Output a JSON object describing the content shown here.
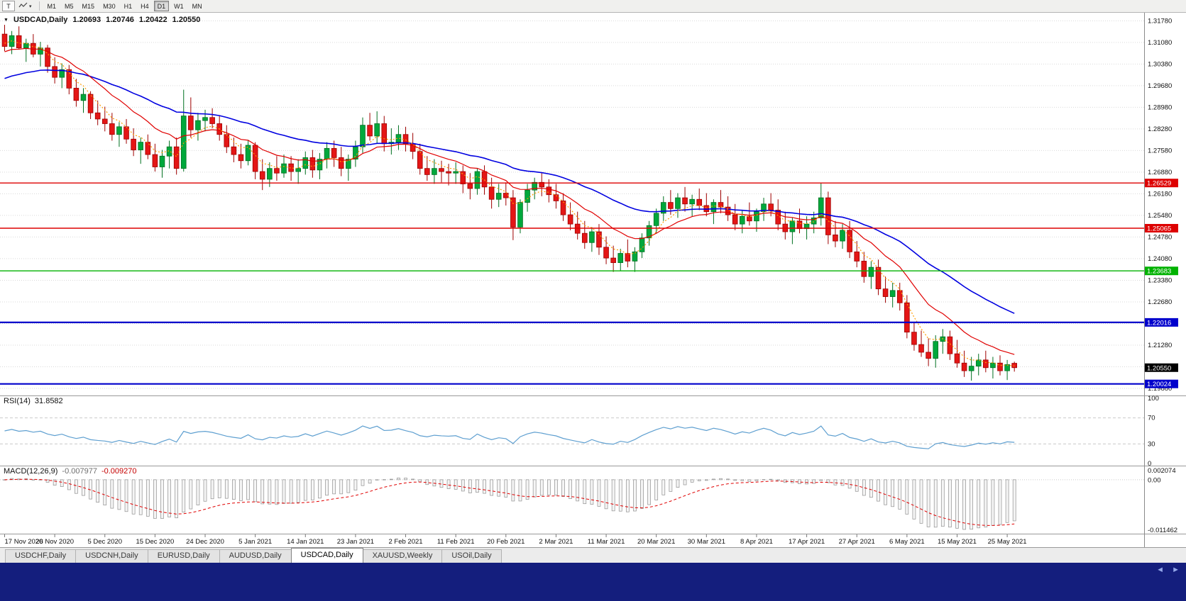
{
  "icons": {
    "collapse": "▼",
    "dropdown": "▾",
    "scroll_left": "◄",
    "scroll_right": "►"
  },
  "toolbar": {
    "tool_button": "T",
    "timeframes": [
      {
        "label": "M1"
      },
      {
        "label": "M5"
      },
      {
        "label": "M15"
      },
      {
        "label": "M30"
      },
      {
        "label": "H1"
      },
      {
        "label": "H4"
      },
      {
        "label": "D1",
        "active": true
      },
      {
        "label": "W1"
      },
      {
        "label": "MN"
      }
    ]
  },
  "chart": {
    "header": {
      "symbol": "USDCAD,Daily",
      "open": "1.20693",
      "high": "1.20746",
      "low": "1.20422",
      "close": "1.20550"
    },
    "price_axis": {
      "labels": [
        "1.31780",
        "1.31080",
        "1.30380",
        "1.29680",
        "1.28980",
        "1.28280",
        "1.27580",
        "1.26880",
        "1.26180",
        "1.25480",
        "1.24780",
        "1.24080",
        "1.23380",
        "1.22680",
        "1.21980",
        "1.21280",
        "1.20580",
        "1.19880"
      ],
      "top": 1.3178,
      "step": 0.007,
      "view_max": 1.3188,
      "view_min": 1.1965
    },
    "hlines": [
      {
        "price": 1.26529,
        "label": "1.26529",
        "color": "#dd0000",
        "width": 1.4
      },
      {
        "price": 1.25065,
        "label": "1.25065",
        "color": "#dd0000",
        "width": 1.4
      },
      {
        "price": 1.23683,
        "label": "1.23683",
        "color": "#00b200",
        "width": 1.4
      },
      {
        "price": 1.22016,
        "label": "1.22016",
        "color": "#0000cc",
        "width": 2.2
      },
      {
        "price": 1.20024,
        "label": "1.20024",
        "color": "#0000cc",
        "width": 2.2
      }
    ],
    "current_price": {
      "price": 1.2055,
      "label": "1.20550",
      "bg": "#000000"
    },
    "moving_averages": [
      {
        "name": "ma-blue-line",
        "color": "#0000e0",
        "period": 34,
        "seed": 1.2985,
        "width": 1.6,
        "dash": ""
      },
      {
        "name": "ma-red-line",
        "color": "#e00000",
        "period": 13,
        "seed": 1.3075,
        "width": 1.2,
        "dash": ""
      },
      {
        "name": "ma-orange-line",
        "color": "#ff9c00",
        "period": 5,
        "seed": 1.311,
        "width": 1.2,
        "dash": "2,2.5"
      }
    ]
  },
  "chart_data": {
    "type": "candlestick",
    "symbol": "USDCAD",
    "timeframe": "Daily",
    "bars_per_label": 7,
    "colors": {
      "up_fill": "#00a83c",
      "up_border": "#007020",
      "down_fill": "#e41616",
      "down_border": "#9e0000"
    },
    "date_labels": [
      "17 Nov 2020",
      "26 Nov 2020",
      "5 Dec 2020",
      "15 Dec 2020",
      "24 Dec 2020",
      "5 Jan 2021",
      "14 Jan 2021",
      "23 Jan 2021",
      "2 Feb 2021",
      "11 Feb 2021",
      "20 Feb 2021",
      "2 Mar 2021",
      "11 Mar 2021",
      "20 Mar 2021",
      "30 Mar 2021",
      "8 Apr 2021",
      "17 Apr 2021",
      "27 Apr 2021",
      "6 May 2021",
      "15 May 2021",
      "25 May 2021"
    ],
    "ohlc": [
      [
        1.3135,
        1.3165,
        1.308,
        1.3095
      ],
      [
        1.3095,
        1.3145,
        1.307,
        1.313
      ],
      [
        1.313,
        1.316,
        1.3085,
        1.309
      ],
      [
        1.309,
        1.312,
        1.3045,
        1.3105
      ],
      [
        1.3105,
        1.3135,
        1.306,
        1.307
      ],
      [
        1.307,
        1.311,
        1.303,
        1.309
      ],
      [
        1.309,
        1.31,
        1.301,
        1.303
      ],
      [
        1.303,
        1.306,
        1.2975,
        1.2995
      ],
      [
        1.2995,
        1.304,
        1.296,
        1.302
      ],
      [
        1.302,
        1.3035,
        1.294,
        1.296
      ],
      [
        1.296,
        1.299,
        1.29,
        1.292
      ],
      [
        1.292,
        1.296,
        1.288,
        1.294
      ],
      [
        1.294,
        1.295,
        1.286,
        1.288
      ],
      [
        1.288,
        1.292,
        1.284,
        1.286
      ],
      [
        1.286,
        1.29,
        1.282,
        1.2845
      ],
      [
        1.2845,
        1.288,
        1.279,
        1.281
      ],
      [
        1.281,
        1.285,
        1.277,
        1.2835
      ],
      [
        1.2835,
        1.286,
        1.278,
        1.2795
      ],
      [
        1.2795,
        1.283,
        1.274,
        1.276
      ],
      [
        1.276,
        1.28,
        1.2715,
        1.2785
      ],
      [
        1.2785,
        1.281,
        1.273,
        1.2745
      ],
      [
        1.2745,
        1.278,
        1.269,
        1.2705
      ],
      [
        1.2705,
        1.276,
        1.267,
        1.274
      ],
      [
        1.274,
        1.279,
        1.27,
        1.277
      ],
      [
        1.277,
        1.28,
        1.268,
        1.27
      ],
      [
        1.27,
        1.2955,
        1.269,
        1.287
      ],
      [
        1.287,
        1.293,
        1.28,
        1.2825
      ],
      [
        1.2825,
        1.288,
        1.279,
        1.2855
      ],
      [
        1.2855,
        1.289,
        1.282,
        1.2865
      ],
      [
        1.2865,
        1.2895,
        1.283,
        1.2845
      ],
      [
        1.2845,
        1.287,
        1.279,
        1.281
      ],
      [
        1.281,
        1.284,
        1.275,
        1.277
      ],
      [
        1.277,
        1.28,
        1.272,
        1.2745
      ],
      [
        1.2745,
        1.278,
        1.27,
        1.2725
      ],
      [
        1.2725,
        1.279,
        1.271,
        1.2775
      ],
      [
        1.2775,
        1.2785,
        1.2665,
        1.269
      ],
      [
        1.269,
        1.273,
        1.263,
        1.2665
      ],
      [
        1.2665,
        1.272,
        1.264,
        1.27
      ],
      [
        1.27,
        1.274,
        1.266,
        1.2685
      ],
      [
        1.2685,
        1.2745,
        1.267,
        1.2715
      ],
      [
        1.2715,
        1.274,
        1.266,
        1.269
      ],
      [
        1.269,
        1.273,
        1.265,
        1.27
      ],
      [
        1.27,
        1.2755,
        1.268,
        1.2735
      ],
      [
        1.2735,
        1.276,
        1.267,
        1.2695
      ],
      [
        1.2695,
        1.275,
        1.2665,
        1.273
      ],
      [
        1.273,
        1.2785,
        1.27,
        1.2765
      ],
      [
        1.2765,
        1.279,
        1.2705,
        1.2735
      ],
      [
        1.2735,
        1.277,
        1.2675,
        1.27
      ],
      [
        1.27,
        1.2745,
        1.266,
        1.273
      ],
      [
        1.273,
        1.279,
        1.2705,
        1.277
      ],
      [
        1.277,
        1.2865,
        1.275,
        1.284
      ],
      [
        1.284,
        1.288,
        1.279,
        1.2805
      ],
      [
        1.2805,
        1.2885,
        1.278,
        1.2845
      ],
      [
        1.2845,
        1.287,
        1.2755,
        1.278
      ],
      [
        1.278,
        1.283,
        1.2745,
        1.2785
      ],
      [
        1.2785,
        1.284,
        1.276,
        1.281
      ],
      [
        1.281,
        1.2835,
        1.2755,
        1.278
      ],
      [
        1.278,
        1.2815,
        1.273,
        1.2755
      ],
      [
        1.2755,
        1.278,
        1.268,
        1.27
      ],
      [
        1.27,
        1.274,
        1.266,
        1.268
      ],
      [
        1.268,
        1.273,
        1.265,
        1.27
      ],
      [
        1.27,
        1.2725,
        1.2655,
        1.269
      ],
      [
        1.269,
        1.2715,
        1.2645,
        1.2685
      ],
      [
        1.2685,
        1.272,
        1.265,
        1.269
      ],
      [
        1.269,
        1.271,
        1.262,
        1.265
      ],
      [
        1.265,
        1.2685,
        1.26,
        1.2635
      ],
      [
        1.2635,
        1.27,
        1.2615,
        1.269
      ],
      [
        1.269,
        1.271,
        1.2615,
        1.264
      ],
      [
        1.264,
        1.267,
        1.257,
        1.26
      ],
      [
        1.26,
        1.265,
        1.2575,
        1.262
      ],
      [
        1.262,
        1.2655,
        1.258,
        1.2605
      ],
      [
        1.2605,
        1.263,
        1.2468,
        1.251
      ],
      [
        1.251,
        1.26,
        1.249,
        1.259
      ],
      [
        1.259,
        1.265,
        1.256,
        1.263
      ],
      [
        1.263,
        1.267,
        1.26,
        1.2655
      ],
      [
        1.2655,
        1.2685,
        1.261,
        1.264
      ],
      [
        1.264,
        1.2665,
        1.259,
        1.2615
      ],
      [
        1.2615,
        1.265,
        1.257,
        1.2595
      ],
      [
        1.2595,
        1.262,
        1.253,
        1.255
      ],
      [
        1.255,
        1.259,
        1.25,
        1.252
      ],
      [
        1.252,
        1.256,
        1.247,
        1.249
      ],
      [
        1.249,
        1.253,
        1.244,
        1.246
      ],
      [
        1.246,
        1.251,
        1.243,
        1.2495
      ],
      [
        1.2495,
        1.252,
        1.242,
        1.2445
      ],
      [
        1.2445,
        1.248,
        1.239,
        1.241
      ],
      [
        1.241,
        1.245,
        1.2365,
        1.2395
      ],
      [
        1.2395,
        1.244,
        1.237,
        1.2425
      ],
      [
        1.2425,
        1.247,
        1.238,
        1.24
      ],
      [
        1.24,
        1.2445,
        1.2365,
        1.243
      ],
      [
        1.243,
        1.249,
        1.241,
        1.2475
      ],
      [
        1.2475,
        1.253,
        1.245,
        1.2515
      ],
      [
        1.2515,
        1.257,
        1.249,
        1.2555
      ],
      [
        1.2555,
        1.261,
        1.253,
        1.259
      ],
      [
        1.259,
        1.263,
        1.255,
        1.257
      ],
      [
        1.257,
        1.262,
        1.254,
        1.2605
      ],
      [
        1.2605,
        1.264,
        1.256,
        1.2585
      ],
      [
        1.2585,
        1.2615,
        1.2545,
        1.26
      ],
      [
        1.26,
        1.2635,
        1.2565,
        1.258
      ],
      [
        1.258,
        1.262,
        1.2545,
        1.256
      ],
      [
        1.256,
        1.26,
        1.252,
        1.259
      ],
      [
        1.259,
        1.263,
        1.2555,
        1.2575
      ],
      [
        1.2575,
        1.261,
        1.253,
        1.255
      ],
      [
        1.255,
        1.2585,
        1.25,
        1.252
      ],
      [
        1.252,
        1.2565,
        1.249,
        1.2545
      ],
      [
        1.2545,
        1.259,
        1.2515,
        1.253
      ],
      [
        1.253,
        1.257,
        1.2495,
        1.256
      ],
      [
        1.256,
        1.2605,
        1.253,
        1.2585
      ],
      [
        1.2585,
        1.262,
        1.2545,
        1.2565
      ],
      [
        1.2565,
        1.26,
        1.25,
        1.252
      ],
      [
        1.252,
        1.256,
        1.247,
        1.2495
      ],
      [
        1.2495,
        1.254,
        1.2455,
        1.253
      ],
      [
        1.253,
        1.257,
        1.249,
        1.2505
      ],
      [
        1.2505,
        1.2545,
        1.247,
        1.252
      ],
      [
        1.252,
        1.256,
        1.249,
        1.254
      ],
      [
        1.254,
        1.2654,
        1.2515,
        1.2605
      ],
      [
        1.2605,
        1.2625,
        1.2455,
        1.2485
      ],
      [
        1.2485,
        1.253,
        1.2445,
        1.2465
      ],
      [
        1.2465,
        1.252,
        1.244,
        1.25
      ],
      [
        1.25,
        1.253,
        1.241,
        1.243
      ],
      [
        1.243,
        1.2465,
        1.238,
        1.24
      ],
      [
        1.24,
        1.243,
        1.233,
        1.235
      ],
      [
        1.235,
        1.24,
        1.231,
        1.238
      ],
      [
        1.238,
        1.2405,
        1.229,
        1.231
      ],
      [
        1.231,
        1.235,
        1.2265,
        1.2285
      ],
      [
        1.2285,
        1.233,
        1.225,
        1.2305
      ],
      [
        1.2305,
        1.233,
        1.224,
        1.2265
      ],
      [
        1.2265,
        1.229,
        1.215,
        1.217
      ],
      [
        1.217,
        1.22,
        1.211,
        1.213
      ],
      [
        1.213,
        1.2175,
        1.209,
        1.2105
      ],
      [
        1.2105,
        1.215,
        1.206,
        1.2085
      ],
      [
        1.2085,
        1.216,
        1.2055,
        1.214
      ],
      [
        1.214,
        1.218,
        1.21,
        1.2155
      ],
      [
        1.2155,
        1.2175,
        1.208,
        1.21
      ],
      [
        1.21,
        1.2145,
        1.2055,
        1.207
      ],
      [
        1.207,
        1.211,
        1.2025,
        1.2045
      ],
      [
        1.2045,
        1.209,
        1.2013,
        1.206
      ],
      [
        1.206,
        1.21,
        1.203,
        1.208
      ],
      [
        1.208,
        1.211,
        1.204,
        1.2055
      ],
      [
        1.2055,
        1.209,
        1.202,
        1.207
      ],
      [
        1.207,
        1.2095,
        1.203,
        1.2045
      ],
      [
        1.2045,
        1.208,
        1.2015,
        1.2065
      ],
      [
        1.20693,
        1.20746,
        1.20422,
        1.2055
      ]
    ]
  },
  "rsi_panel": {
    "title": "RSI(14)",
    "value": "31.8582",
    "axis_labels": [
      "100",
      "70",
      "30",
      "0"
    ],
    "levels": [
      70,
      30
    ],
    "line_color": "#5e9fd0"
  },
  "macd_panel": {
    "title": "MACD(12,26,9)",
    "macd_value": "-0.007977",
    "signal_value": "-0.009270",
    "axis_labels": [
      "0.002074",
      "0.00",
      "-0.011462"
    ],
    "scale_max": 0.002074,
    "scale_min": -0.011462,
    "fast": 12,
    "slow": 26,
    "signal": 9
  },
  "tab_bar": {
    "tabs": [
      {
        "label": "USDCHF,Daily"
      },
      {
        "label": "USDCNH,Daily"
      },
      {
        "label": "EURUSD,Daily"
      },
      {
        "label": "AUDUSD,Daily"
      },
      {
        "label": "USDCAD,Daily",
        "active": true
      },
      {
        "label": "XAUUSD,Weekly"
      },
      {
        "label": "USOil,Daily"
      }
    ]
  }
}
